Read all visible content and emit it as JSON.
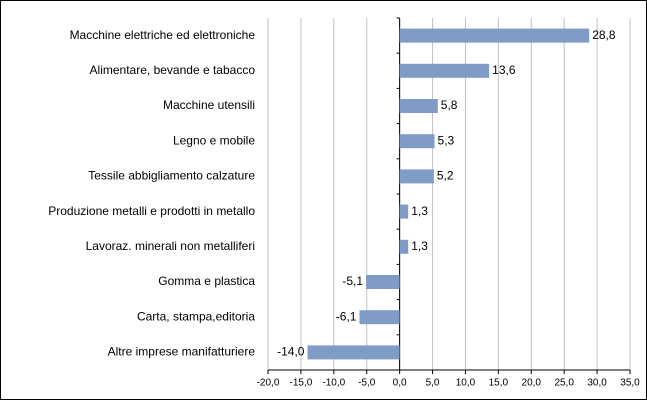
{
  "chart_data": {
    "type": "bar",
    "orientation": "horizontal",
    "categories": [
      "Macchine elettriche ed elettroniche",
      "Alimentare, bevande e tabacco",
      "Macchine utensili",
      "Legno e mobile",
      "Tessile abbigliamento calzature",
      "Produzione metalli e prodotti in metallo",
      "Lavoraz. minerali non metalliferi",
      "Gomma e plastica",
      "Carta, stampa,editoria",
      "Altre imprese manifatturiere"
    ],
    "values": [
      28.8,
      13.6,
      5.8,
      5.3,
      5.2,
      1.3,
      1.3,
      -5.1,
      -6.1,
      -14.0
    ],
    "value_labels": [
      "28,8",
      "13,6",
      "5,8",
      "5,3",
      "5,2",
      "1,3",
      "1,3",
      "-5,1",
      "-6,1",
      "-14,0"
    ],
    "color": "#7f9cc6",
    "xlim": [
      -20,
      35
    ],
    "xticks": [
      {
        "value": -20,
        "label": "-20,0"
      },
      {
        "value": -15,
        "label": "-15,0"
      },
      {
        "value": -10,
        "label": "-10,0"
      },
      {
        "value": -5,
        "label": "-5,0"
      },
      {
        "value": 0,
        "label": "0,0"
      },
      {
        "value": 5,
        "label": "5,0"
      },
      {
        "value": 10,
        "label": "10,0"
      },
      {
        "value": 15,
        "label": "15,0"
      },
      {
        "value": 20,
        "label": "20,0"
      },
      {
        "value": 25,
        "label": "25,0"
      },
      {
        "value": 30,
        "label": "30,0"
      },
      {
        "value": 35,
        "label": "35,0"
      }
    ],
    "grid": true
  }
}
